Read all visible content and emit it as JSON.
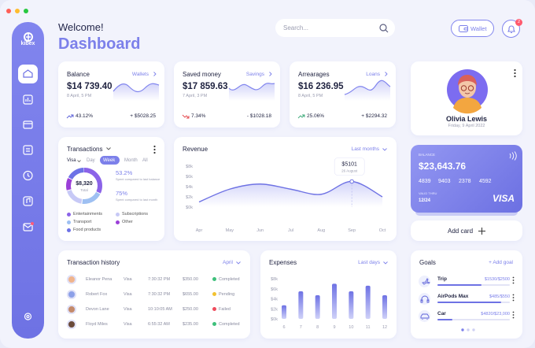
{
  "window": {
    "brand": "kibex"
  },
  "header": {
    "greeting": "Welcome!",
    "title": "Dashboard",
    "search_placeholder": "Search...",
    "wallet": "Wallet",
    "notifications": "2"
  },
  "summary_cards": [
    {
      "title": "Balance",
      "link": "Wallets",
      "amount": "$14 739.40",
      "date": "8 April, 5 PM",
      "change": "43.12%",
      "delta": "+ $5028.25"
    },
    {
      "title": "Saved money",
      "link": "Savings",
      "amount": "$17 859.63",
      "date": "7 April, 3 PM",
      "change": "7.34%",
      "delta": "- $1028.18"
    },
    {
      "title": "Arrearages",
      "link": "Loans",
      "amount": "$16 236.95",
      "date": "8 April, 5 PM",
      "change": "25.06%",
      "delta": "+ $2294.32"
    }
  ],
  "transactions": {
    "title": "Transactions",
    "card": "Visa",
    "tabs": [
      "Day",
      "Week",
      "Month",
      "All"
    ],
    "total": "$8,320",
    "total_label": "Total",
    "stats": [
      {
        "value": "53.2%",
        "note": "Spent compared to last balance"
      },
      {
        "value": "75%",
        "note": "Spent compared to last month"
      }
    ],
    "legend": [
      "Entertainments",
      "Subscriptions",
      "Transport",
      "Other",
      "Food products"
    ]
  },
  "revenue": {
    "type": "line",
    "title": "Revenue",
    "filter": "Last months",
    "categories": [
      "Apr",
      "May",
      "Jun",
      "Jul",
      "Aug",
      "Sep",
      "Oct"
    ],
    "values": [
      1,
      3.5,
      4.5,
      3.5,
      2.5,
      5,
      2
    ],
    "ylim": [
      0,
      8
    ],
    "yticks": [
      {
        "value": 0,
        "label": "$0k"
      },
      {
        "value": 2,
        "label": "$2k"
      },
      {
        "value": 4,
        "label": "$4k"
      },
      {
        "value": 6,
        "label": "$6k"
      },
      {
        "value": 8,
        "label": "$8k"
      }
    ],
    "tooltip": {
      "value": "$5101",
      "date": "26 August"
    }
  },
  "profile": {
    "name": "Olivia Lewis",
    "date": "Friday, 9 April 2022"
  },
  "card": {
    "balance_label": "BALANCE",
    "balance": "$23,643.76",
    "number": [
      "4839",
      "9403",
      "2378",
      "4592"
    ],
    "valid_label": "VALID THRU",
    "valid": "12/24",
    "brand": "VISA"
  },
  "add_card": "Add card",
  "history": {
    "title": "Transaction history",
    "filter": "April",
    "rows": [
      {
        "name": "Eleanor Pena",
        "method": "Visa",
        "time": "7:30:32 PM",
        "amount": "$350.00",
        "status": "Completed"
      },
      {
        "name": "Robert Fox",
        "method": "Visa",
        "time": "7:30:32 PM",
        "amount": "$655.00",
        "status": "Pending"
      },
      {
        "name": "Devon Lane",
        "method": "Visa",
        "time": "10:10:05 AM",
        "amount": "$250.00",
        "status": "Failed"
      },
      {
        "name": "Floyd Miles",
        "method": "Visa",
        "time": "6:55:32 AM",
        "amount": "$235.00",
        "status": "Completed"
      }
    ]
  },
  "expenses": {
    "type": "bar",
    "title": "Expenses",
    "filter": "Last days",
    "categories": [
      "6",
      "7",
      "8",
      "9",
      "10",
      "11",
      "12"
    ],
    "values": [
      2.7,
      5.5,
      4.7,
      7,
      5.5,
      6.6,
      4.7
    ],
    "ylim": [
      0,
      8
    ],
    "yticks": [
      {
        "value": 0,
        "label": "$0k"
      },
      {
        "value": 2,
        "label": "$2k"
      },
      {
        "value": 4,
        "label": "$4k"
      },
      {
        "value": 6,
        "label": "$6k"
      },
      {
        "value": 8,
        "label": "$8k"
      }
    ]
  },
  "goals": {
    "title": "Goals",
    "add": "+ Add goal",
    "items": [
      {
        "name": "Trip",
        "amount": "$1530/$2500"
      },
      {
        "name": "AirPods Max",
        "amount": "$485/$550"
      },
      {
        "name": "Car",
        "amount": "$4820/$23,000"
      }
    ]
  }
}
